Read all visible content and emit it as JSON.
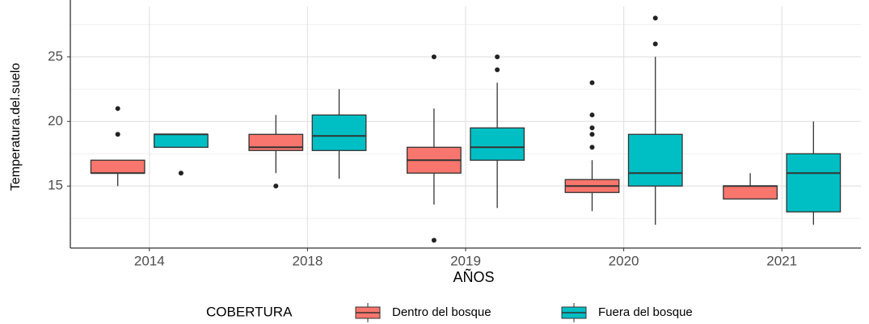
{
  "chart_data": {
    "type": "boxplot",
    "x_label": "AÑOS",
    "y_label": "Temperatura.del.suelo",
    "legend_title": "COBERTURA",
    "legend_position": "bottom",
    "grid": true,
    "categories": [
      "2014",
      "2018",
      "2019",
      "2020",
      "2021"
    ],
    "ylim": [
      10.2,
      28.9
    ],
    "yticks": [
      15,
      20,
      25
    ],
    "yminor": [
      12.5,
      17.5,
      22.5,
      27.5
    ],
    "series": [
      {
        "name": "Dentro del bosque",
        "color": "#F8766D",
        "stats": [
          {
            "min": 15,
            "q1": 16,
            "median": 16,
            "q3": 17,
            "max": 17,
            "outliers": [
              19,
              21
            ]
          },
          {
            "min": 16,
            "q1": 17.75,
            "median": 18,
            "q3": 19,
            "max": 20.5,
            "outliers": [
              15
            ]
          },
          {
            "min": 13.56,
            "q1": 16,
            "median": 17,
            "q3": 18,
            "max": 21,
            "outliers": [
              25,
              10.8
            ]
          },
          {
            "min": 13.06,
            "q1": 14.5,
            "median": 15,
            "q3": 15.5,
            "max": 17,
            "outliers": [
              18,
              19,
              19.5,
              20.5,
              23
            ]
          },
          {
            "min": 14,
            "q1": 14,
            "median": 15,
            "q3": 15,
            "max": 16,
            "outliers": []
          }
        ]
      },
      {
        "name": "Fuera del bosque",
        "color": "#00BFC4",
        "stats": [
          {
            "min": 18,
            "q1": 18,
            "median": 19,
            "q3": 19,
            "max": 19,
            "outliers": [
              16
            ]
          },
          {
            "min": 15.56,
            "q1": 17.75,
            "median": 18.875,
            "q3": 20.5,
            "max": 22.5,
            "outliers": []
          },
          {
            "min": 13.3,
            "q1": 17,
            "median": 18,
            "q3": 19.5,
            "max": 23,
            "outliers": [
              24,
              25
            ]
          },
          {
            "min": 12,
            "q1": 15,
            "median": 16,
            "q3": 19,
            "max": 25,
            "outliers": [
              26,
              28
            ]
          },
          {
            "min": 12,
            "q1": 13,
            "median": 16,
            "q3": 17.5,
            "max": 20,
            "outliers": []
          }
        ]
      }
    ]
  }
}
